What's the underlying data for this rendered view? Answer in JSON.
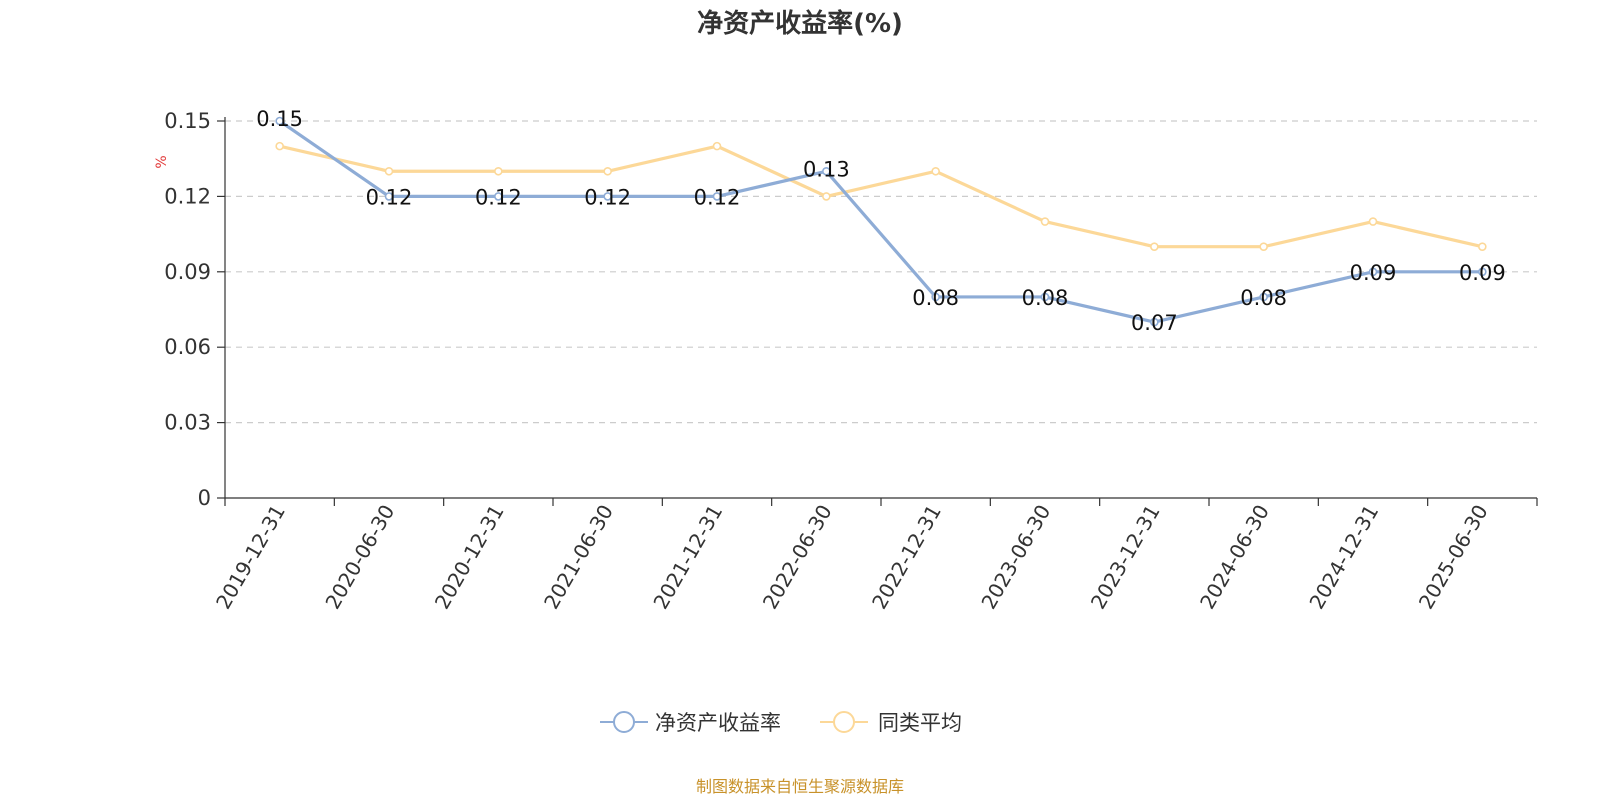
{
  "chart_data": {
    "type": "line",
    "title": "净资产收益率(%)",
    "ylabel": "%",
    "xlabel": "",
    "categories": [
      "2019-12-31",
      "2020-06-30",
      "2020-12-31",
      "2021-06-30",
      "2021-12-31",
      "2022-06-30",
      "2022-12-31",
      "2023-06-30",
      "2023-12-31",
      "2024-06-30",
      "2024-12-31",
      "2025-06-30"
    ],
    "ylim": [
      0,
      0.15
    ],
    "yticks": [
      "0",
      "0.03",
      "0.06",
      "0.09",
      "0.12",
      "0.15"
    ],
    "grid": true,
    "legend_position": "bottom",
    "series": [
      {
        "name": "净资产收益率",
        "color": "#8eacd6",
        "show_labels": true,
        "values": [
          0.15,
          0.12,
          0.12,
          0.12,
          0.12,
          0.13,
          0.08,
          0.08,
          0.07,
          0.08,
          0.09,
          0.09
        ]
      },
      {
        "name": "同类平均",
        "color": "#fcd898",
        "show_labels": false,
        "values": [
          0.14,
          0.13,
          0.13,
          0.13,
          0.14,
          0.12,
          0.13,
          0.11,
          0.1,
          0.1,
          0.11,
          0.1
        ]
      }
    ]
  },
  "source_text": "制图数据来自恒生聚源数据库"
}
